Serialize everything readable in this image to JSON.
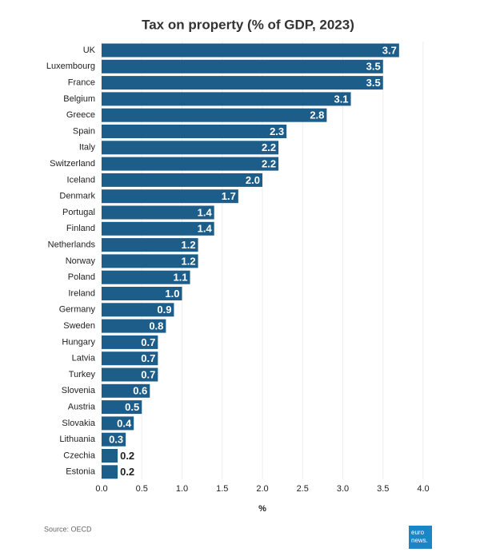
{
  "chart_data": {
    "type": "bar",
    "orientation": "horizontal",
    "title": "Tax on property (% of GDP, 2023)",
    "categories": [
      "UK",
      "Luxembourg",
      "France",
      "Belgium",
      "Greece",
      "Spain",
      "Italy",
      "Switzerland",
      "Iceland",
      "Denmark",
      "Portugal",
      "Finland",
      "Netherlands",
      "Norway",
      "Poland",
      "Ireland",
      "Germany",
      "Sweden",
      "Hungary",
      "Latvia",
      "Turkey",
      "Slovenia",
      "Austria",
      "Slovakia",
      "Lithuania",
      "Czechia",
      "Estonia"
    ],
    "values": [
      3.7,
      3.5,
      3.5,
      3.1,
      2.8,
      2.3,
      2.2,
      2.2,
      2.0,
      1.7,
      1.4,
      1.4,
      1.2,
      1.2,
      1.1,
      1.0,
      0.9,
      0.8,
      0.7,
      0.7,
      0.7,
      0.6,
      0.5,
      0.4,
      0.3,
      0.2,
      0.2
    ],
    "value_labels": [
      "3.7",
      "3.5",
      "3.5",
      "3.1",
      "2.8",
      "2.3",
      "2.2",
      "2.2",
      "2.0",
      "1.7",
      "1.4",
      "1.4",
      "1.2",
      "1.2",
      "1.1",
      "1.0",
      "0.9",
      "0.8",
      "0.7",
      "0.7",
      "0.7",
      "0.6",
      "0.5",
      "0.4",
      "0.3",
      "0.2",
      "0.2"
    ],
    "color": "#1d5d8a",
    "xlim": [
      0,
      4
    ],
    "xticks": [
      {
        "value": 0,
        "label": "0.0"
      },
      0.5,
      {
        "value": 1,
        "label": "1.0"
      },
      1.5,
      {
        "value": 2,
        "label": "2.0"
      },
      2.5,
      {
        "value": 3,
        "label": "3.0"
      },
      3.5,
      {
        "value": 4,
        "label": "4.0"
      }
    ],
    "xlabel": "%",
    "source": "Source: OECD",
    "brand": [
      "euro",
      "news."
    ]
  }
}
